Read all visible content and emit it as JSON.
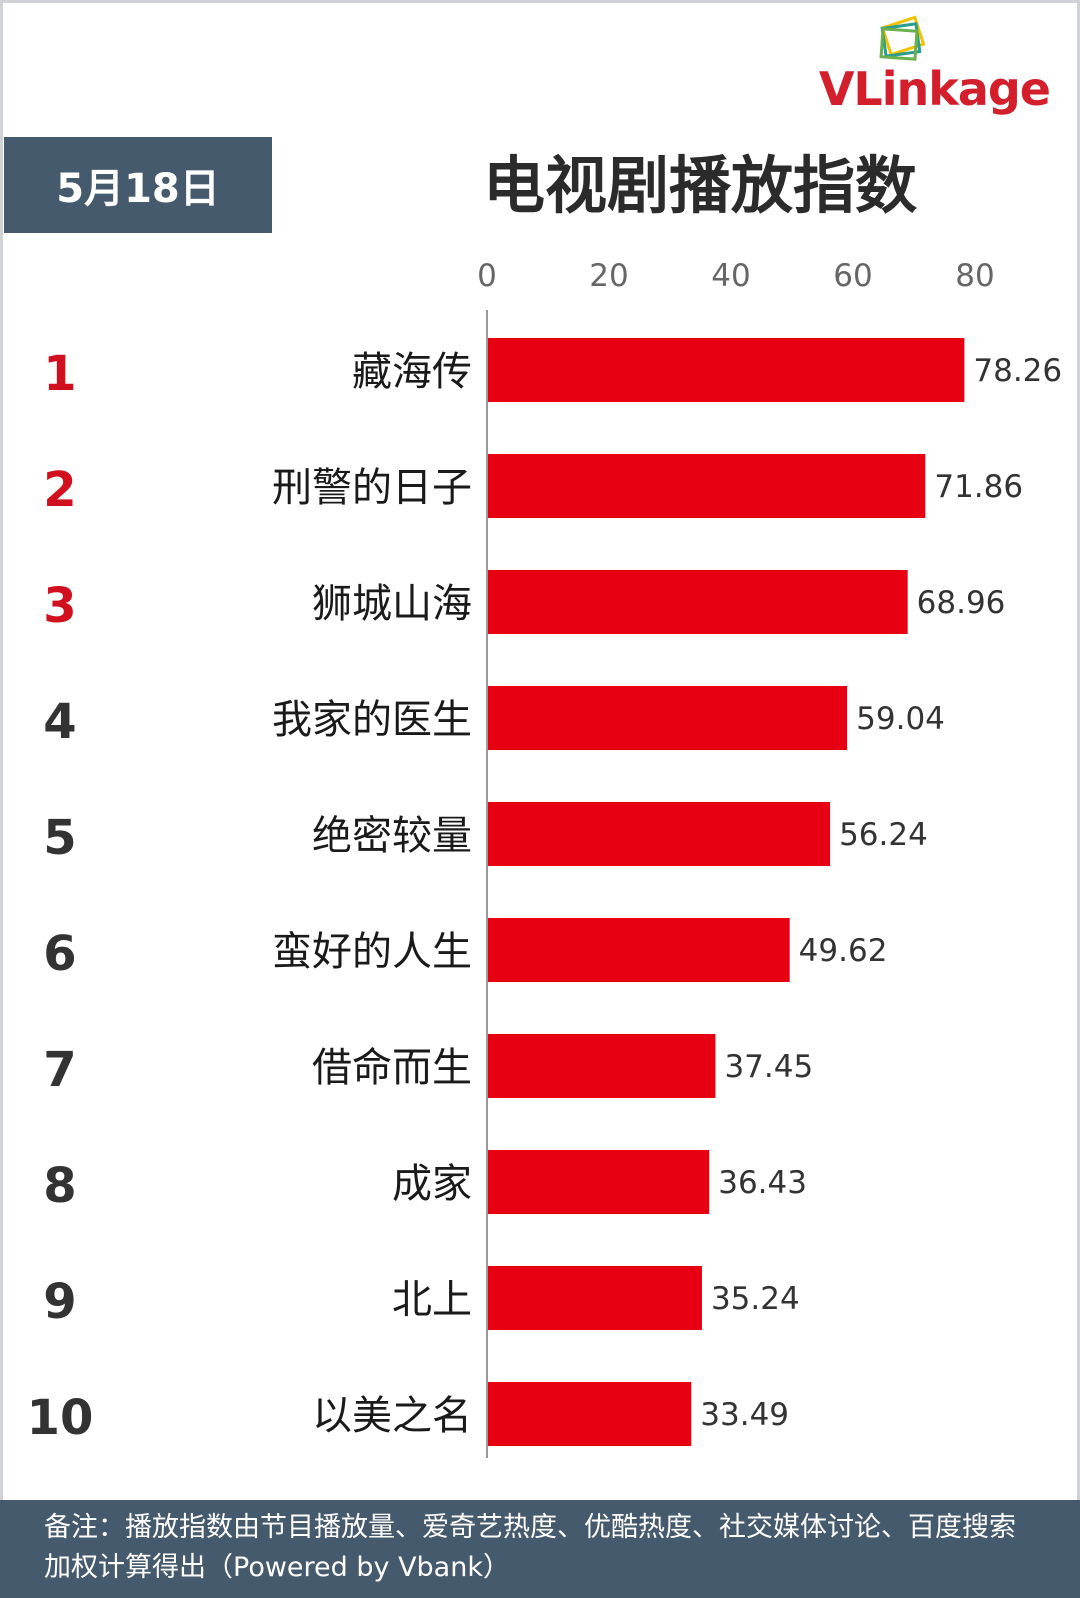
{
  "logo": {
    "text": "VLinkage"
  },
  "header": {
    "date": "5月18日",
    "title": "电视剧播放指数"
  },
  "colors": {
    "bar": "#e60012",
    "rank_top": "#d0101e",
    "rank_other": "#333333",
    "badge": "#465a6e"
  },
  "chart_data": {
    "type": "bar",
    "orientation": "horizontal",
    "title": "电视剧播放指数",
    "xlim": [
      0,
      80
    ],
    "xticks": [
      "0",
      "20",
      "40",
      "60",
      "80"
    ],
    "ranks": [
      "1",
      "2",
      "3",
      "4",
      "5",
      "6",
      "7",
      "8",
      "9",
      "10"
    ],
    "categories": [
      "藏海传",
      "刑警的日子",
      "狮城山海",
      "我家的医生",
      "绝密较量",
      "蛮好的人生",
      "借命而生",
      "成家",
      "北上",
      "以美之名"
    ],
    "values": [
      78.26,
      71.86,
      68.96,
      59.04,
      56.24,
      49.62,
      37.45,
      36.43,
      35.24,
      33.49
    ],
    "value_labels": [
      "78.26",
      "71.86",
      "68.96",
      "59.04",
      "56.24",
      "49.62",
      "37.45",
      "36.43",
      "35.24",
      "33.49"
    ]
  },
  "footer": {
    "note": "备注：播放指数由节目播放量、爱奇艺热度、优酷热度、社交媒体讨论、百度搜索加权计算得出（Powered by Vbank）"
  }
}
